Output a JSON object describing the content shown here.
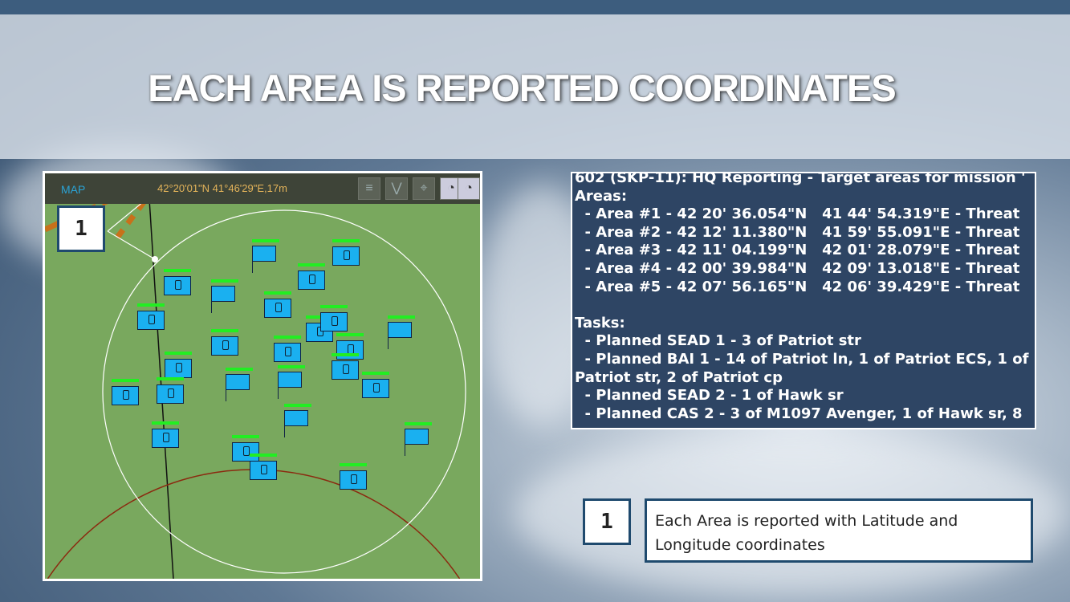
{
  "slide": {
    "title": "EACH AREA IS REPORTED COORDINATES"
  },
  "map": {
    "label": "MAP",
    "coordinates": "42°20'01\"N 41°46'29\"E,17m",
    "callout_number": "1",
    "toolbar_icons": [
      "map-layer-icon",
      "route-icon",
      "waypoint-icon",
      "radar-dish-icon",
      "radar-dish-icon"
    ],
    "colors": {
      "ground": "#79a85e",
      "unit": "#1ab0f0",
      "health_bar": "#22ee22",
      "range_ring": "#ffffff",
      "road": "#c8711a"
    }
  },
  "report": {
    "lines": [
      "602 (SKP-11): HQ Reporting - Target areas for mission '",
      "Areas:",
      "  - Area #1 - 42 20' 36.054\"N   41 44' 54.319\"E - Threat",
      "  - Area #2 - 42 12' 11.380\"N   41 59' 55.091\"E - Threat",
      "  - Area #3 - 42 11' 04.199\"N   42 01' 28.079\"E - Threat",
      "  - Area #4 - 42 00' 39.984\"N   42 09' 13.018\"E - Threat",
      "  - Area #5 - 42 07' 56.165\"N   42 06' 39.429\"E - Threat",
      "",
      "Tasks:",
      "  - Planned SEAD 1 - 3 of Patriot str",
      "  - Planned BAI 1 - 14 of Patriot ln, 1 of Patriot ECS, 1 of",
      "Patriot str, 2 of Patriot cp",
      "  - Planned SEAD 2 - 1 of Hawk sr",
      "  - Planned CAS 2 - 3 of M1097 Avenger, 1 of Hawk sr, 8"
    ]
  },
  "note": {
    "number": "1",
    "text": "Each Area is reported with Latitude and Longitude coordinates"
  }
}
